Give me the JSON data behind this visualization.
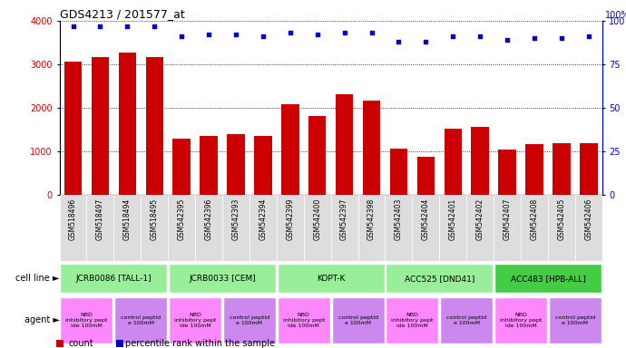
{
  "title": "GDS4213 / 201577_at",
  "samples": [
    "GSM518496",
    "GSM518497",
    "GSM518494",
    "GSM518495",
    "GSM542395",
    "GSM542396",
    "GSM542393",
    "GSM542394",
    "GSM542399",
    "GSM542400",
    "GSM542397",
    "GSM542398",
    "GSM542403",
    "GSM542404",
    "GSM542401",
    "GSM542402",
    "GSM542407",
    "GSM542408",
    "GSM542405",
    "GSM542406"
  ],
  "counts": [
    3060,
    3170,
    3280,
    3160,
    1285,
    1345,
    1390,
    1360,
    2090,
    1810,
    2310,
    2160,
    1065,
    875,
    1530,
    1560,
    1040,
    1175,
    1195,
    1185
  ],
  "percentiles": [
    97,
    97,
    97,
    97,
    91,
    92,
    92,
    91,
    93,
    92,
    93,
    93,
    88,
    88,
    91,
    91,
    89,
    90,
    90,
    91
  ],
  "cell_lines": [
    {
      "label": "JCRB0086 [TALL-1]",
      "start": 0,
      "end": 4,
      "color": "#99EE99"
    },
    {
      "label": "JCRB0033 [CEM]",
      "start": 4,
      "end": 8,
      "color": "#99EE99"
    },
    {
      "label": "KOPT-K",
      "start": 8,
      "end": 12,
      "color": "#99EE99"
    },
    {
      "label": "ACC525 [DND41]",
      "start": 12,
      "end": 16,
      "color": "#99EE99"
    },
    {
      "label": "ACC483 [HPB-ALL]",
      "start": 16,
      "end": 20,
      "color": "#44CC44"
    }
  ],
  "agents": [
    {
      "label": "NBD\ninhibitory pept\nide 100mM",
      "start": 0,
      "end": 2,
      "color": "#FF88FF"
    },
    {
      "label": "control peptid\ne 100mM",
      "start": 2,
      "end": 4,
      "color": "#CC88EE"
    },
    {
      "label": "NBD\ninhibitory pept\nide 100mM",
      "start": 4,
      "end": 6,
      "color": "#FF88FF"
    },
    {
      "label": "control peptid\ne 100mM",
      "start": 6,
      "end": 8,
      "color": "#CC88EE"
    },
    {
      "label": "NBD\ninhibitory pept\nide 100mM",
      "start": 8,
      "end": 10,
      "color": "#FF88FF"
    },
    {
      "label": "control peptid\ne 100mM",
      "start": 10,
      "end": 12,
      "color": "#CC88EE"
    },
    {
      "label": "NBD\ninhibitory pept\nide 100mM",
      "start": 12,
      "end": 14,
      "color": "#FF88FF"
    },
    {
      "label": "control peptid\ne 100mM",
      "start": 14,
      "end": 16,
      "color": "#CC88EE"
    },
    {
      "label": "NBD\ninhibitory pept\nide 100mM",
      "start": 16,
      "end": 18,
      "color": "#FF88FF"
    },
    {
      "label": "control peptid\ne 100mM",
      "start": 18,
      "end": 20,
      "color": "#CC88EE"
    }
  ],
  "bar_color": "#CC0000",
  "dot_color": "#0000CC",
  "ylim_left": [
    0,
    4000
  ],
  "ylim_right": [
    0,
    100
  ],
  "yticks_left": [
    0,
    1000,
    2000,
    3000,
    4000
  ],
  "yticks_right": [
    0,
    25,
    50,
    75,
    100
  ],
  "background_color": "#FFFFFF"
}
